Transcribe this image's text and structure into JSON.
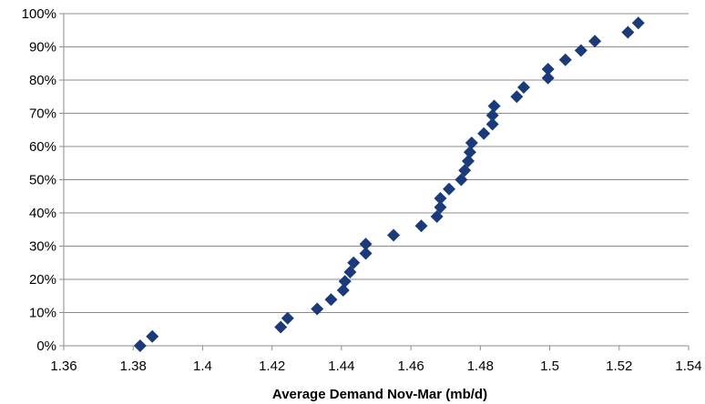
{
  "chart_data": {
    "type": "scatter",
    "title": "",
    "xlabel": "Average Demand Nov-Mar (mb/d)",
    "ylabel": "",
    "xlim": [
      1.36,
      1.54
    ],
    "ylim": [
      0,
      100
    ],
    "x_ticks": [
      1.36,
      1.38,
      1.4,
      1.42,
      1.44,
      1.46,
      1.48,
      1.5,
      1.52,
      1.54
    ],
    "x_tick_labels": [
      "1.36",
      "1.38",
      "1.4",
      "1.42",
      "1.44",
      "1.46",
      "1.48",
      "1.5",
      "1.52",
      "1.54"
    ],
    "y_ticks": [
      0,
      10,
      20,
      30,
      40,
      50,
      60,
      70,
      80,
      90,
      100
    ],
    "y_tick_labels": [
      "0%",
      "10%",
      "20%",
      "30%",
      "40%",
      "50%",
      "60%",
      "70%",
      "80%",
      "90%",
      "100%"
    ],
    "grid": "horizontal",
    "legend": "none",
    "marker": "diamond",
    "marker_color": "#1B3A7A",
    "series": [
      {
        "points": [
          [
            1.382,
            0
          ],
          [
            1.3855,
            2.8
          ],
          [
            1.4225,
            5.6
          ],
          [
            1.4245,
            8.3
          ],
          [
            1.433,
            11.1
          ],
          [
            1.437,
            13.9
          ],
          [
            1.4405,
            16.7
          ],
          [
            1.441,
            19.4
          ],
          [
            1.4425,
            22.2
          ],
          [
            1.4435,
            25.0
          ],
          [
            1.447,
            27.8
          ],
          [
            1.447,
            30.6
          ],
          [
            1.455,
            33.3
          ],
          [
            1.463,
            36.1
          ],
          [
            1.4675,
            38.9
          ],
          [
            1.4685,
            41.7
          ],
          [
            1.4685,
            44.4
          ],
          [
            1.471,
            47.2
          ],
          [
            1.4745,
            50.0
          ],
          [
            1.4755,
            52.8
          ],
          [
            1.4765,
            55.6
          ],
          [
            1.477,
            58.3
          ],
          [
            1.4775,
            61.1
          ],
          [
            1.481,
            63.9
          ],
          [
            1.4835,
            66.7
          ],
          [
            1.4835,
            69.4
          ],
          [
            1.484,
            72.2
          ],
          [
            1.4905,
            75.0
          ],
          [
            1.4925,
            77.8
          ],
          [
            1.4995,
            80.6
          ],
          [
            1.4995,
            83.3
          ],
          [
            1.5045,
            86.1
          ],
          [
            1.509,
            88.9
          ],
          [
            1.513,
            91.7
          ],
          [
            1.5225,
            94.4
          ],
          [
            1.5255,
            97.2
          ]
        ]
      }
    ]
  }
}
